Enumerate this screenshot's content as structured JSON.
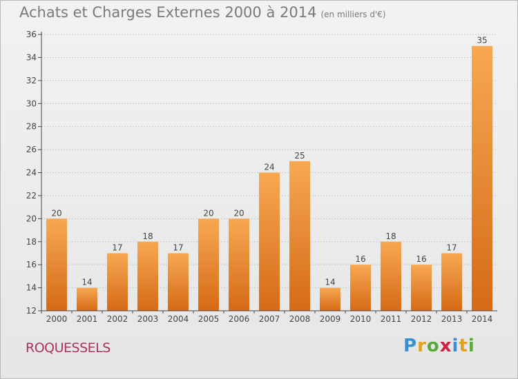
{
  "title": "Achats et Charges Externes 2000 à 2014",
  "unit": "(en milliers d'€)",
  "town": "ROQUESSELS",
  "logo": {
    "p": "P",
    "r": "r",
    "o": "o",
    "x": "x",
    "i": "i",
    "t": "t",
    "i2": "i"
  },
  "colors": {
    "bar_top": "#f7a851",
    "bar_bottom": "#d56a17",
    "grid": "#c8c8c8",
    "axis": "#444444"
  },
  "chart_data": {
    "type": "bar",
    "categories": [
      "2000",
      "2001",
      "2002",
      "2003",
      "2004",
      "2005",
      "2006",
      "2007",
      "2008",
      "2009",
      "2010",
      "2011",
      "2012",
      "2013",
      "2014"
    ],
    "values": [
      20,
      14,
      17,
      18,
      17,
      20,
      20,
      24,
      25,
      14,
      16,
      18,
      16,
      17,
      35
    ],
    "yticks": [
      12,
      14,
      16,
      18,
      20,
      22,
      24,
      26,
      28,
      30,
      32,
      34,
      36
    ],
    "ylim": [
      12,
      36
    ],
    "grid": true,
    "title": "Achats et Charges Externes 2000 à 2014"
  }
}
